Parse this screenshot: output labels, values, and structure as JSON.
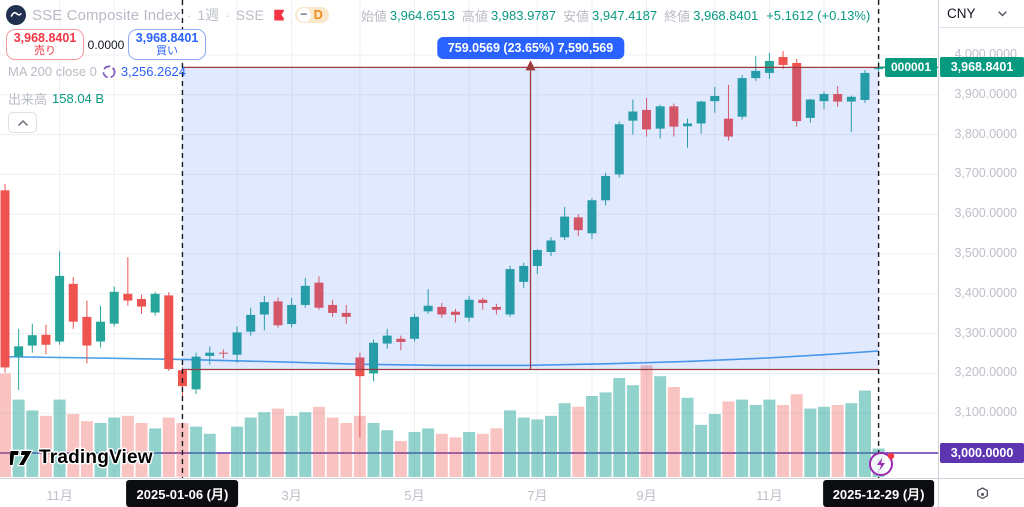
{
  "header": {
    "symbol_title": "SSE Composite Index",
    "separator": "·",
    "interval": "1週",
    "exchange": "SSE",
    "market_status": "−",
    "delayed_badge": "D",
    "ohlc": [
      {
        "label": "始値",
        "value": "3,964.6513"
      },
      {
        "label": "高値",
        "value": "3,983.9787"
      },
      {
        "label": "安値",
        "value": "3,947.4187"
      },
      {
        "label": "終値",
        "value": "3,968.8401"
      }
    ],
    "change": "+5.1612 (+0.13%)",
    "currency": "CNY"
  },
  "trade_panel": {
    "sell_price": "3,968.8401",
    "sell_label": "売り",
    "spread": "0.0000",
    "buy_price": "3,968.8401",
    "buy_label": "買い"
  },
  "indicators": {
    "ma": {
      "label": "MA 200 close 0",
      "value": "3,256.2624"
    },
    "volume": {
      "label": "出来高",
      "value": "158.04 B"
    }
  },
  "measure_tooltip": "759.0569 (23.65%) 7,590,569",
  "price_label": {
    "ticker": "000001",
    "price": "3,968.8401"
  },
  "purple_level_label": "3,000.0000",
  "time_axis": {
    "start_chip": "2025-01-06 (月)",
    "end_chip": "2025-12-29 (月)"
  },
  "watermark_text": "TradingView",
  "chart_data": {
    "type": "candlestick",
    "interval": "weekly",
    "title": "SSE Composite Index 1週",
    "price_axis": {
      "max": 4000,
      "min": 3000,
      "step": 100
    },
    "price_ticks": [
      4000,
      3900,
      3800,
      3700,
      3600,
      3500,
      3400,
      3300,
      3200,
      3100,
      3000
    ],
    "grid": true,
    "last_price": 3968.8401,
    "candles_ohlcv": [
      [
        3660,
        3676,
        3202,
        3215,
        575
      ],
      [
        3242,
        3312,
        3158,
        3268,
        430
      ],
      [
        3270,
        3325,
        3252,
        3296,
        370
      ],
      [
        3297,
        3322,
        3248,
        3272,
        340
      ],
      [
        3280,
        3507,
        3272,
        3445,
        430
      ],
      [
        3425,
        3442,
        3312,
        3330,
        350
      ],
      [
        3342,
        3383,
        3225,
        3270,
        310
      ],
      [
        3280,
        3370,
        3265,
        3330,
        300
      ],
      [
        3325,
        3418,
        3318,
        3405,
        330
      ],
      [
        3400,
        3492,
        3370,
        3383,
        340
      ],
      [
        3387,
        3398,
        3350,
        3368,
        300
      ],
      [
        3353,
        3405,
        3345,
        3400,
        270
      ],
      [
        3396,
        3404,
        3206,
        3211,
        330
      ],
      [
        3208,
        3215,
        3140,
        3168,
        300
      ],
      [
        3160,
        3252,
        3148,
        3242,
        280
      ],
      [
        3244,
        3268,
        3222,
        3252,
        240
      ],
      [
        3252,
        3260,
        3238,
        3250,
        130
      ],
      [
        3247,
        3318,
        3227,
        3303,
        280
      ],
      [
        3305,
        3365,
        3295,
        3347,
        330
      ],
      [
        3348,
        3395,
        3308,
        3379,
        360
      ],
      [
        3381,
        3390,
        3315,
        3321,
        380
      ],
      [
        3324,
        3390,
        3316,
        3372,
        340
      ],
      [
        3372,
        3440,
        3365,
        3420,
        360
      ],
      [
        3428,
        3444,
        3360,
        3365,
        390
      ],
      [
        3372,
        3385,
        3342,
        3352,
        330
      ],
      [
        3352,
        3372,
        3325,
        3342,
        300
      ],
      [
        3240,
        3252,
        3040,
        3193,
        340
      ],
      [
        3200,
        3285,
        3180,
        3277,
        300
      ],
      [
        3275,
        3312,
        3262,
        3295,
        260
      ],
      [
        3287,
        3295,
        3258,
        3279,
        200
      ],
      [
        3287,
        3350,
        3280,
        3342,
        250
      ],
      [
        3356,
        3412,
        3350,
        3370,
        270
      ],
      [
        3367,
        3377,
        3340,
        3348,
        240
      ],
      [
        3355,
        3362,
        3328,
        3347,
        220
      ],
      [
        3340,
        3395,
        3330,
        3385,
        250
      ],
      [
        3385,
        3390,
        3360,
        3377,
        240
      ],
      [
        3367,
        3375,
        3348,
        3360,
        270
      ],
      [
        3348,
        3470,
        3342,
        3462,
        370
      ],
      [
        3430,
        3478,
        3415,
        3470,
        330
      ],
      [
        3470,
        3512,
        3450,
        3510,
        320
      ],
      [
        3505,
        3542,
        3495,
        3534,
        340
      ],
      [
        3542,
        3618,
        3535,
        3594,
        410
      ],
      [
        3592,
        3600,
        3545,
        3560,
        390
      ],
      [
        3552,
        3640,
        3538,
        3635,
        450
      ],
      [
        3635,
        3704,
        3622,
        3696,
        470
      ],
      [
        3700,
        3833,
        3692,
        3826,
        550
      ],
      [
        3835,
        3888,
        3800,
        3858,
        510
      ],
      [
        3862,
        3892,
        3795,
        3813,
        620
      ],
      [
        3815,
        3875,
        3790,
        3871,
        560
      ],
      [
        3871,
        3878,
        3795,
        3820,
        500
      ],
      [
        3821,
        3840,
        3767,
        3828,
        440
      ],
      [
        3828,
        3885,
        3802,
        3883,
        290
      ],
      [
        3884,
        3920,
        3855,
        3897,
        350
      ],
      [
        3840,
        3925,
        3785,
        3795,
        420
      ],
      [
        3845,
        3950,
        3838,
        3942,
        430
      ],
      [
        3942,
        3997,
        3935,
        3960,
        400
      ],
      [
        3955,
        4005,
        3940,
        3985,
        430
      ],
      [
        3995,
        4010,
        3965,
        3975,
        400
      ],
      [
        3980,
        3990,
        3820,
        3834,
        460
      ],
      [
        3842,
        3890,
        3830,
        3888,
        380
      ],
      [
        3884,
        3908,
        3864,
        3902,
        390
      ],
      [
        3902,
        3922,
        3870,
        3883,
        400
      ],
      [
        3883,
        3898,
        3807,
        3895,
        410
      ],
      [
        3887,
        3962,
        3880,
        3955,
        480
      ],
      [
        3964.6513,
        3983.9787,
        3947.4187,
        3968.8401,
        158.04
      ]
    ],
    "ma200": {
      "name": "MA 200 close",
      "points": [
        [
          0,
          3242
        ],
        [
          6,
          3239
        ],
        [
          13,
          3235
        ],
        [
          20,
          3229
        ],
        [
          26,
          3223
        ],
        [
          32,
          3220
        ],
        [
          38,
          3220
        ],
        [
          44,
          3224
        ],
        [
          50,
          3230
        ],
        [
          56,
          3239
        ],
        [
          60,
          3247
        ],
        [
          64,
          3256.26
        ]
      ]
    },
    "measure": {
      "from_index": 13,
      "to_index": 64,
      "from_price": 3209.7832,
      "to_price": 3968.8401,
      "label": "759.0569 (23.65%) 7,590,569"
    },
    "levels": [
      {
        "price": 3000,
        "label": "3,000.0000"
      }
    ],
    "month_gridlines": [
      4,
      8,
      13,
      17,
      21,
      26,
      30,
      34,
      39,
      43,
      47,
      52,
      56,
      60
    ],
    "month_labels": [
      {
        "label": "11月",
        "index": 4
      },
      {
        "label": "3月",
        "index": 21
      },
      {
        "label": "5月",
        "index": 30
      },
      {
        "label": "7月",
        "index": 39
      },
      {
        "label": "9月",
        "index": 47
      },
      {
        "label": "11月",
        "index": 56
      }
    ],
    "colors": {
      "up": "#26a69a",
      "down": "#ef5350",
      "vol_up": "rgba(38,166,154,0.5)",
      "vol_down": "rgba(239,83,80,0.35)",
      "ma": "#4ba0e8",
      "grid": "#edeff4",
      "measure_line": "#9c3a3e",
      "measure_fill": "rgba(41,98,255,0.14)",
      "level": "#5e35b1",
      "last": "#089981",
      "dash": "#16181d"
    }
  }
}
